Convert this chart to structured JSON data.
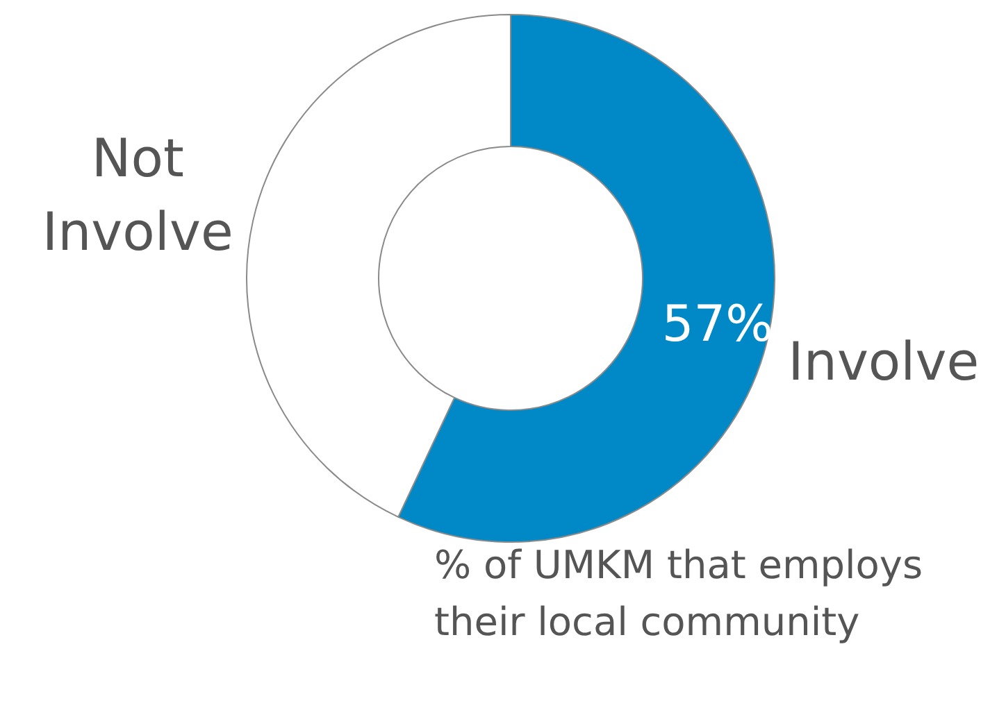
{
  "chart_data": {
    "type": "donut",
    "categories": [
      "Involve",
      "Not Involve"
    ],
    "values": [
      57,
      43
    ],
    "colors": [
      "#0089c6",
      "#ffffff"
    ],
    "value_labels": [
      "57%",
      null
    ],
    "annotations": [
      "% of UMKM that employs their local community"
    ]
  }
}
